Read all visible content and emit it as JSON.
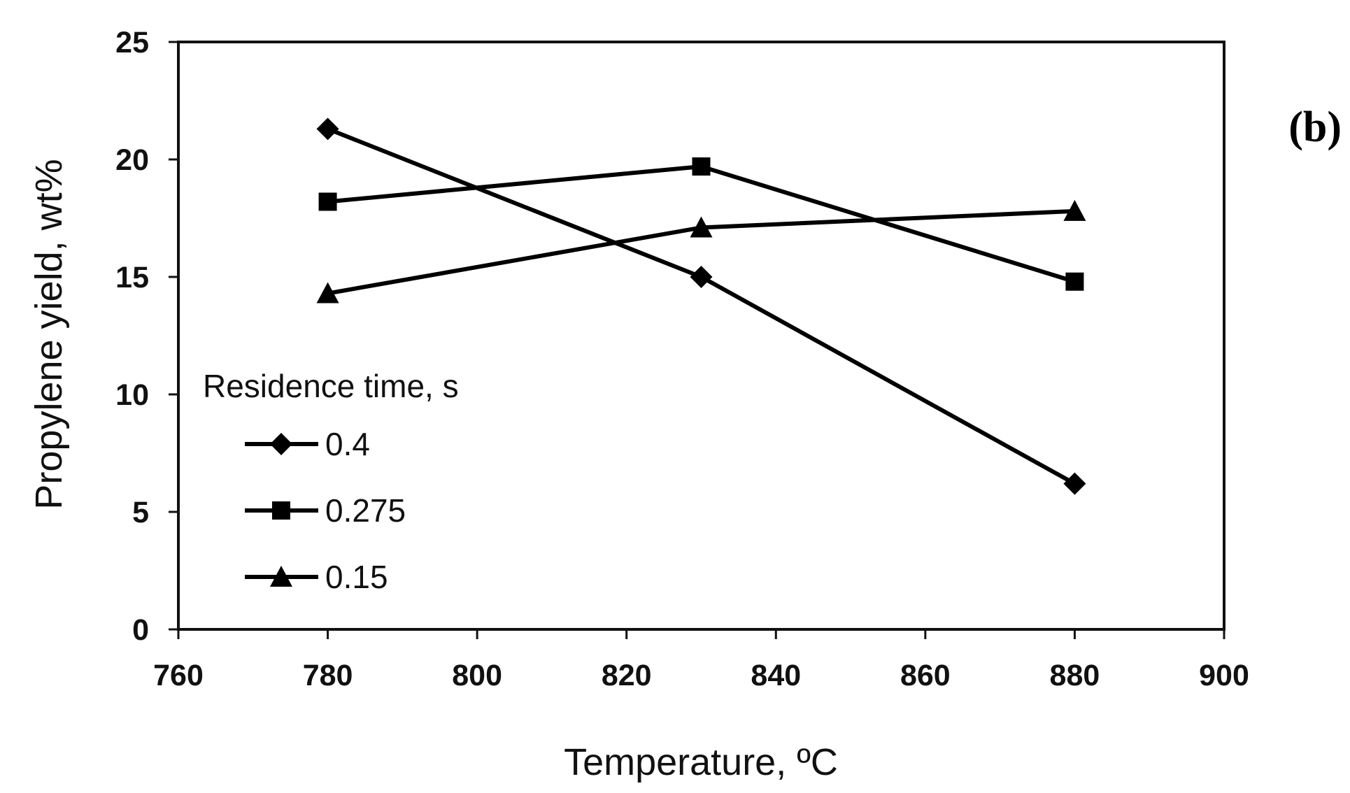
{
  "panel_label": "(b)",
  "chart_data": {
    "type": "line",
    "title": "",
    "xlabel": "Temperature, ºC",
    "ylabel": "Propylene yield, wt%",
    "xlim": [
      760,
      900
    ],
    "ylim": [
      0,
      25
    ],
    "xticks": [
      760,
      780,
      800,
      820,
      840,
      860,
      880,
      900
    ],
    "yticks": [
      0,
      5,
      10,
      15,
      20,
      25
    ],
    "xtick_labels": [
      "760",
      "780",
      "800",
      "820",
      "840",
      "860",
      "880",
      "900"
    ],
    "ytick_labels": [
      "0",
      "5",
      "10",
      "15",
      "20",
      "25"
    ],
    "grid": false,
    "legend_title": "Residence time, s",
    "legend_position": "lower-left",
    "colors": {
      "line": "#000000",
      "axis": "#111111"
    },
    "x": [
      780,
      830,
      880
    ],
    "series": [
      {
        "name": "0.4",
        "marker": "diamond",
        "values": [
          21.3,
          15.0,
          6.2
        ]
      },
      {
        "name": "0.275",
        "marker": "square",
        "values": [
          18.2,
          19.7,
          14.8
        ]
      },
      {
        "name": "0.15",
        "marker": "triangle",
        "values": [
          14.3,
          17.1,
          17.8
        ]
      }
    ]
  }
}
